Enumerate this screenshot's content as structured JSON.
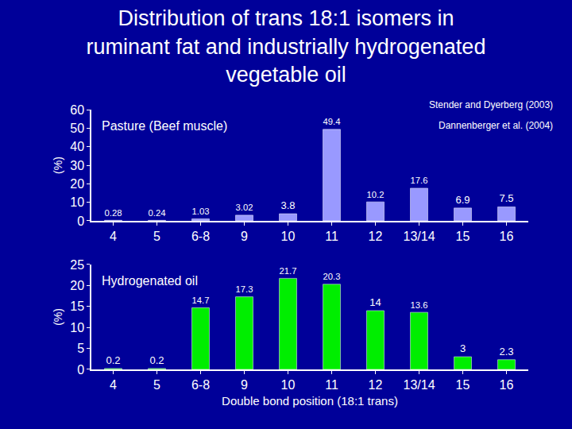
{
  "title": [
    "Distribution of trans 18:1 isomers in",
    "ruminant fat and industrially hydrogenated",
    "vegetable oil"
  ],
  "sources": [
    "Stender and Dyerberg (2003)",
    "Dannenberger et al. (2004)"
  ],
  "chart_data": [
    {
      "type": "bar",
      "label": "Pasture (Beef muscle)",
      "ylabel": "(%)",
      "categories": [
        "4",
        "5",
        "6-8",
        "9",
        "10",
        "11",
        "12",
        "13/14",
        "15",
        "16"
      ],
      "values": [
        0.28,
        0.24,
        1.03,
        3.02,
        3.8,
        49.4,
        10.2,
        17.6,
        6.9,
        7.5
      ],
      "color": "#9999ff",
      "ylim": [
        0,
        60
      ],
      "yticks": [
        0,
        10,
        20,
        30,
        40,
        50,
        60
      ],
      "grid": false,
      "data_labels": true
    },
    {
      "type": "bar",
      "label": "Hydrogenated oil",
      "ylabel": "(%)",
      "xlabel": "Double bond position (18:1 trans)",
      "categories": [
        "4",
        "5",
        "6-8",
        "9",
        "10",
        "11",
        "12",
        "13/14",
        "15",
        "16"
      ],
      "values": [
        0.2,
        0.2,
        14.7,
        17.3,
        21.7,
        20.3,
        14,
        13.6,
        3,
        2.3
      ],
      "color": "#00ee00",
      "ylim": [
        0,
        25
      ],
      "yticks": [
        0,
        5,
        10,
        15,
        20,
        25
      ],
      "grid": false,
      "data_labels": true
    }
  ]
}
